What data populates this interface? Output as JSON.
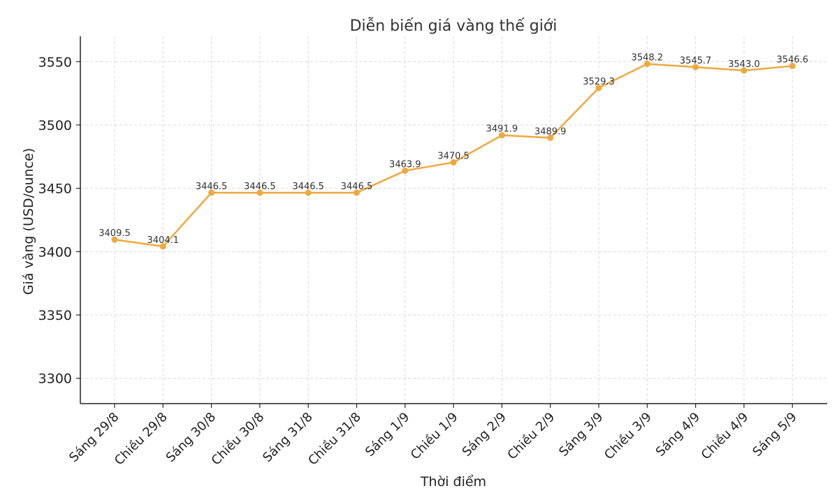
{
  "chart_data": {
    "type": "line",
    "title": "Diễn biến giá vàng thế giới",
    "xlabel": "Thời điểm",
    "ylabel": "Giá vàng (USD/ounce)",
    "categories": [
      "Sáng 29/8",
      "Chiều 29/8",
      "Sáng 30/8",
      "Chiều 30/8",
      "Sáng 31/8",
      "Chiều 31/8",
      "Sáng 1/9",
      "Chiều 1/9",
      "Sáng 2/9",
      "Chiều 2/9",
      "Sáng 3/9",
      "Chiều 3/9",
      "Sáng 4/9",
      "Chiều 4/9",
      "Sáng 5/9"
    ],
    "series": [
      {
        "values": [
          3409.5,
          3404.1,
          3446.5,
          3446.5,
          3446.5,
          3446.5,
          3463.9,
          3470.5,
          3491.9,
          3489.9,
          3529.3,
          3548.2,
          3545.7,
          3543.0,
          3546.6
        ],
        "labels": [
          "3409.5",
          "3404.1",
          "3446.5",
          "3446.5",
          "3446.5",
          "3446.5",
          "3463.9",
          "3470.5",
          "3491.9",
          "3489.9",
          "3529.3",
          "3548.2",
          "3545.7",
          "3543.0",
          "3546.6"
        ],
        "color": "#f0a83c"
      }
    ],
    "yticks": [
      "3300",
      "3350",
      "3400",
      "3450",
      "3500",
      "3550"
    ],
    "ylim": [
      3280,
      3570
    ],
    "grid": true,
    "legend": "none"
  }
}
